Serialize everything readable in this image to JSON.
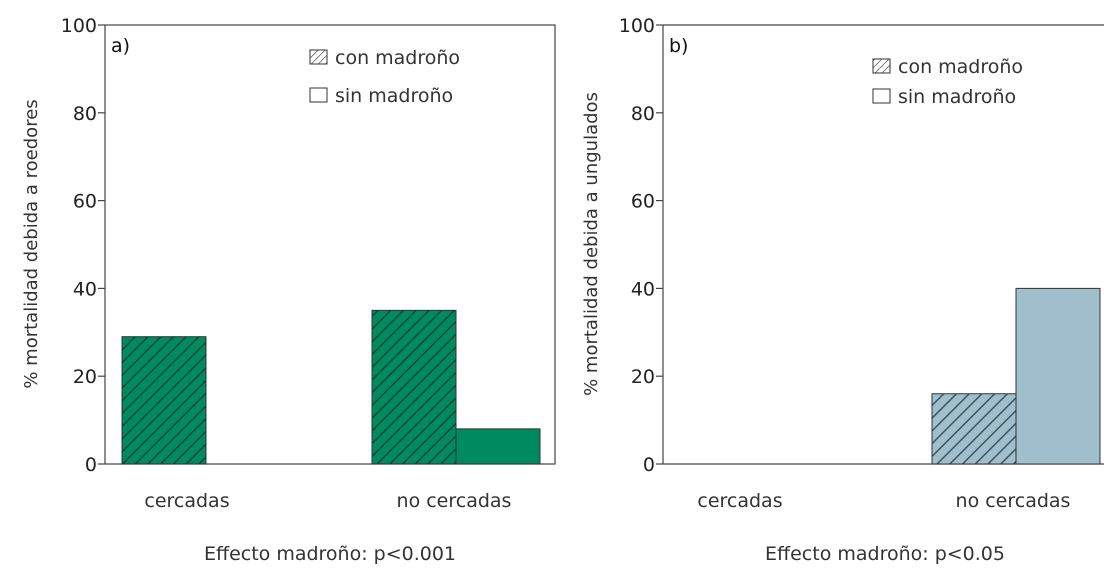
{
  "chart_data": [
    {
      "type": "bar",
      "panel": "a)",
      "categories": [
        "cercadas",
        "no cercadas"
      ],
      "series": [
        {
          "name": "con madroño",
          "values": [
            29,
            35
          ],
          "pattern": "hatched"
        },
        {
          "name": "sin madroño",
          "values": [
            0,
            8
          ],
          "pattern": "solid"
        }
      ],
      "fill_color": "#008a60",
      "hatch_color": "#064a33",
      "ylabel": "% mortalidad debida a roedores",
      "ylim": [
        0,
        100
      ],
      "yticks": [
        "0",
        "20",
        "40",
        "60",
        "80",
        "100"
      ],
      "note": "Effecto madroño: p<0.001",
      "legend_position": "top-right",
      "grid": false
    },
    {
      "type": "bar",
      "panel": "b)",
      "categories": [
        "cercadas",
        "no cercadas"
      ],
      "series": [
        {
          "name": "con madroño",
          "values": [
            0,
            16
          ],
          "pattern": "hatched"
        },
        {
          "name": "sin madroño",
          "values": [
            0,
            40
          ],
          "pattern": "solid"
        }
      ],
      "fill_color": "#9fbfcc",
      "hatch_color": "#3d5663",
      "ylabel": "% mortalidad debida a ungulados",
      "ylim": [
        0,
        100
      ],
      "yticks": [
        "0",
        "20",
        "40",
        "60",
        "80",
        "100"
      ],
      "note": "Effecto madroño: p<0.05",
      "legend_position": "top-right",
      "grid": false
    }
  ]
}
